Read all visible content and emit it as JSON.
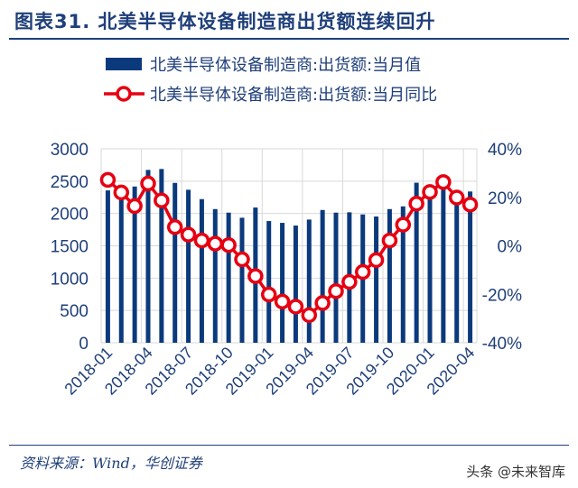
{
  "title": "图表31. 北美半导体设备制造商出货额连续回升",
  "source": "资料来源：Wind，华创证券",
  "watermark": "头条 @未来智库",
  "chart_data": {
    "type": "bar+line",
    "categories": [
      "2018-01",
      "2018-02",
      "2018-03",
      "2018-04",
      "2018-05",
      "2018-06",
      "2018-07",
      "2018-08",
      "2018-09",
      "2018-10",
      "2018-11",
      "2018-12",
      "2019-01",
      "2019-02",
      "2019-03",
      "2019-04",
      "2019-05",
      "2019-06",
      "2019-07",
      "2019-08",
      "2019-09",
      "2019-10",
      "2019-11",
      "2019-12",
      "2020-01",
      "2020-02",
      "2020-03",
      "2020-04"
    ],
    "x_tick_labels": [
      "2018-01",
      "2018-04",
      "2018-07",
      "2018-10",
      "2019-01",
      "2019-04",
      "2019-07",
      "2019-10",
      "2020-01",
      "2020-04"
    ],
    "series": [
      {
        "name": "北美半导体设备制造商:出货额:当月值",
        "type": "bar",
        "axis": "left",
        "color": "#0b3a7c",
        "values": [
          2357,
          2410,
          2417,
          2674,
          2688,
          2473,
          2367,
          2222,
          2068,
          2013,
          1934,
          2092,
          1883,
          1855,
          1813,
          1906,
          2054,
          2013,
          2018,
          1985,
          1953,
          2068,
          2110,
          2476,
          2380,
          2370,
          2210,
          2340
        ]
      },
      {
        "name": "北美半导体设备制造商:出货额:当月同比",
        "type": "line",
        "axis": "right",
        "color": "#e60012",
        "values": [
          27.2,
          22.0,
          16.4,
          25.7,
          18.7,
          7.7,
          4.6,
          2.2,
          0.9,
          0.3,
          -5.6,
          -12.5,
          -20.1,
          -23.0,
          -25.1,
          -28.6,
          -23.6,
          -18.7,
          -14.9,
          -10.8,
          -5.9,
          2.2,
          8.7,
          17.4,
          22.2,
          26.3,
          19.9,
          17.0
        ]
      }
    ],
    "y_left": {
      "range": [
        0,
        3000
      ],
      "ticks": [
        "0",
        "500",
        "1000",
        "1500",
        "2000",
        "2500",
        "3000"
      ]
    },
    "y_right": {
      "range": [
        -40,
        40
      ],
      "ticks": [
        "-40%",
        "-20%",
        "0%",
        "20%",
        "40%"
      ]
    },
    "grid": true,
    "legend": "top"
  }
}
